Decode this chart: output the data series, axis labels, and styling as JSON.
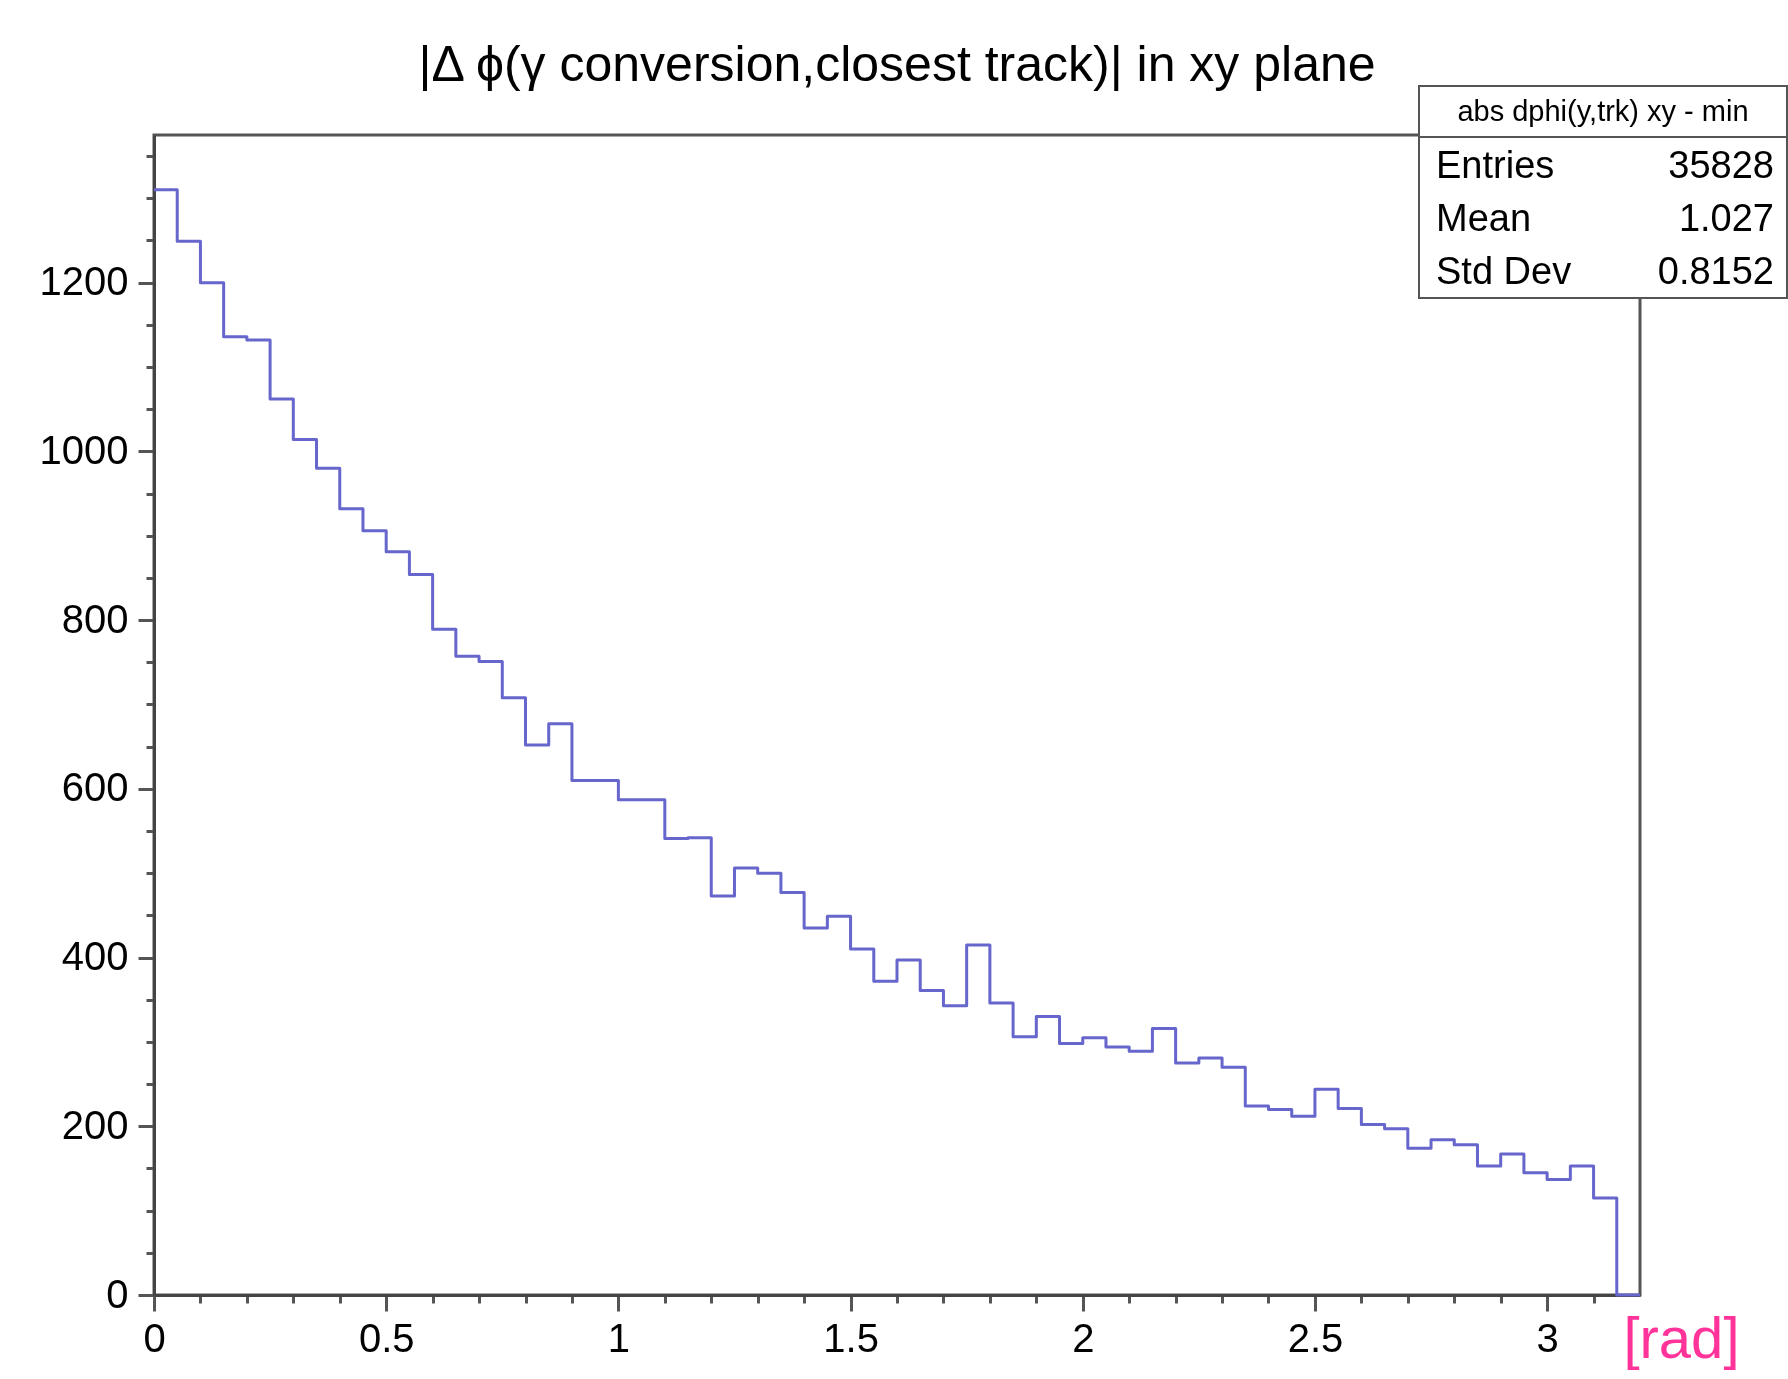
{
  "chart_data": {
    "type": "histogram",
    "title": "|Δ ϕ(γ conversion,closest track)| in xy plane",
    "xlabel": "[rad]",
    "bins": [
      0,
      0.05,
      0.1,
      0.15,
      0.2,
      0.25,
      0.3,
      0.35,
      0.4,
      0.45,
      0.5,
      0.55,
      0.6,
      0.65,
      0.7,
      0.75,
      0.8,
      0.85,
      0.9,
      0.95,
      1,
      1.05,
      1.1,
      1.15,
      1.2,
      1.25,
      1.3,
      1.35,
      1.4,
      1.45,
      1.5,
      1.55,
      1.6,
      1.65,
      1.7,
      1.75,
      1.8,
      1.85,
      1.9,
      1.95,
      2,
      2.05,
      2.1,
      2.15,
      2.2,
      2.25,
      2.3,
      2.35,
      2.4,
      2.45,
      2.5,
      2.55,
      2.6,
      2.65,
      2.7,
      2.75,
      2.8,
      2.85,
      2.9,
      2.95,
      3,
      3.05,
      3.1,
      3.15,
      3.2
    ],
    "values": [
      1310,
      1249,
      1200,
      1136,
      1132,
      1062,
      1014,
      980,
      932,
      906,
      881,
      854,
      789,
      757,
      751,
      708,
      652,
      677,
      610,
      610,
      587,
      587,
      541,
      542,
      473,
      506,
      500,
      477,
      435,
      449,
      410,
      372,
      397,
      361,
      343,
      415,
      346,
      306,
      330,
      298,
      305,
      294,
      289,
      316,
      275,
      281,
      270,
      224,
      220,
      212,
      244,
      221,
      202,
      197,
      174,
      184,
      178,
      153,
      167,
      145,
      137,
      153,
      115,
      0
    ],
    "color": "#6666cc",
    "xlim": [
      0,
      3.2
    ],
    "xticks": [
      0,
      {
        "value": 0.1,
        "label": null
      },
      {
        "value": 0.2,
        "label": null
      },
      {
        "value": 0.3,
        "label": null
      },
      {
        "value": 0.4,
        "label": null
      },
      0.5,
      {
        "value": 0.6,
        "label": null
      },
      {
        "value": 0.7,
        "label": null
      },
      {
        "value": 0.8,
        "label": null
      },
      {
        "value": 0.9,
        "label": null
      },
      1,
      {
        "value": 1.1,
        "label": null
      },
      {
        "value": 1.2,
        "label": null
      },
      {
        "value": 1.3,
        "label": null
      },
      {
        "value": 1.4,
        "label": null
      },
      1.5,
      {
        "value": 1.6,
        "label": null
      },
      {
        "value": 1.7,
        "label": null
      },
      {
        "value": 1.8,
        "label": null
      },
      {
        "value": 1.9,
        "label": null
      },
      2,
      {
        "value": 2.1,
        "label": null
      },
      {
        "value": 2.2,
        "label": null
      },
      {
        "value": 2.3,
        "label": null
      },
      {
        "value": 2.4,
        "label": null
      },
      2.5,
      {
        "value": 2.6,
        "label": null
      },
      {
        "value": 2.7,
        "label": null
      },
      {
        "value": 2.8,
        "label": null
      },
      {
        "value": 2.9,
        "label": null
      },
      3,
      {
        "value": 3.1,
        "label": null
      }
    ],
    "ylim": [
      0,
      1375
    ],
    "yticks": [
      0,
      {
        "value": 50,
        "label": null
      },
      {
        "value": 100,
        "label": null
      },
      {
        "value": 150,
        "label": null
      },
      200,
      {
        "value": 250,
        "label": null
      },
      {
        "value": 300,
        "label": null
      },
      {
        "value": 350,
        "label": null
      },
      400,
      {
        "value": 450,
        "label": null
      },
      {
        "value": 500,
        "label": null
      },
      {
        "value": 550,
        "label": null
      },
      600,
      {
        "value": 650,
        "label": null
      },
      {
        "value": 700,
        "label": null
      },
      {
        "value": 750,
        "label": null
      },
      800,
      {
        "value": 850,
        "label": null
      },
      {
        "value": 900,
        "label": null
      },
      {
        "value": 950,
        "label": null
      },
      1000,
      {
        "value": 1050,
        "label": null
      },
      {
        "value": 1100,
        "label": null
      },
      {
        "value": 1150,
        "label": null
      },
      1200,
      {
        "value": 1250,
        "label": null
      },
      {
        "value": 1300,
        "label": null
      },
      {
        "value": 1350,
        "label": null
      }
    ],
    "annotations": [
      "abs dphi(y,trk) xy - min",
      "Entries",
      "35828",
      "Mean",
      "1.027",
      "Std Dev",
      "0.8152"
    ]
  }
}
